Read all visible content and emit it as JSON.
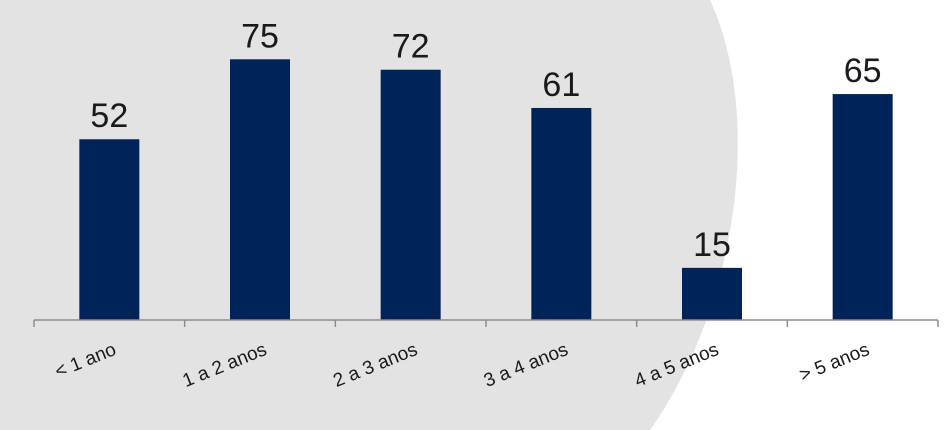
{
  "colors": {
    "bar": "#00235a",
    "backdrop": "#e3e3e3",
    "axis": "#8c8c8c",
    "text": "#1a1a1a"
  },
  "chart_data": {
    "type": "bar",
    "title": "",
    "xlabel": "",
    "ylabel": "",
    "categories": [
      "< 1 ano",
      "1 a 2 anos",
      "2 a 3 anos",
      "3 a 4 anos",
      "4 a 5 anos",
      "> 5 anos"
    ],
    "values": [
      52,
      75,
      72,
      61,
      15,
      65
    ],
    "ylim": [
      0,
      80
    ],
    "grid": false,
    "legend": "none",
    "data_labels": true
  }
}
